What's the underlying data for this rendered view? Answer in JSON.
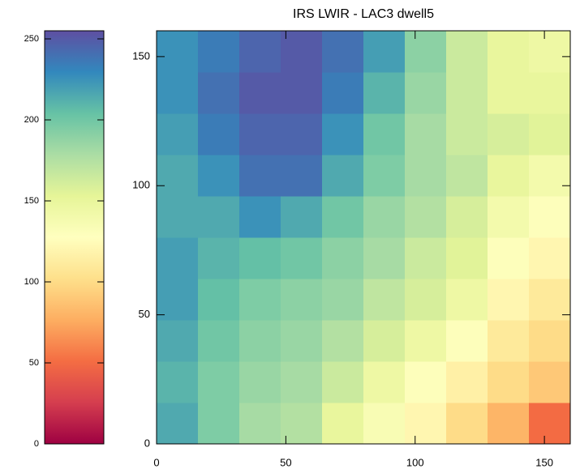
{
  "chart_data": {
    "type": "heatmap",
    "title": "IRS LWIR - LAC3 dwell5",
    "xlim": [
      0,
      160
    ],
    "ylim": [
      0,
      160
    ],
    "xticks": [
      0,
      50,
      100,
      150
    ],
    "yticks": [
      0,
      50,
      100,
      150
    ],
    "clim": [
      0,
      255
    ],
    "cticks": [
      0,
      50,
      100,
      150,
      200,
      250
    ],
    "colormap": [
      "#9e0142",
      "#d53e4f",
      "#f46d43",
      "#fdae61",
      "#fee08b",
      "#ffffbf",
      "#e6f598",
      "#abdda4",
      "#66c2a5",
      "#3288bd",
      "#5e4fa2"
    ],
    "z": [
      [
        215,
        195,
        180,
        175,
        150,
        135,
        120,
        100,
        80,
        50
      ],
      [
        210,
        195,
        185,
        180,
        165,
        145,
        130,
        115,
        100,
        90
      ],
      [
        215,
        200,
        190,
        185,
        175,
        160,
        145,
        130,
        110,
        100
      ],
      [
        220,
        205,
        195,
        190,
        185,
        170,
        160,
        145,
        120,
        110
      ],
      [
        220,
        210,
        205,
        200,
        190,
        180,
        165,
        155,
        130,
        120
      ],
      [
        215,
        215,
        225,
        215,
        200,
        185,
        175,
        160,
        140,
        130
      ],
      [
        215,
        225,
        240,
        240,
        215,
        195,
        180,
        170,
        150,
        140
      ],
      [
        220,
        235,
        245,
        245,
        225,
        200,
        180,
        165,
        160,
        155
      ],
      [
        225,
        240,
        250,
        250,
        235,
        210,
        185,
        165,
        150,
        150
      ],
      [
        225,
        235,
        245,
        250,
        240,
        220,
        190,
        165,
        150,
        145
      ]
    ]
  }
}
